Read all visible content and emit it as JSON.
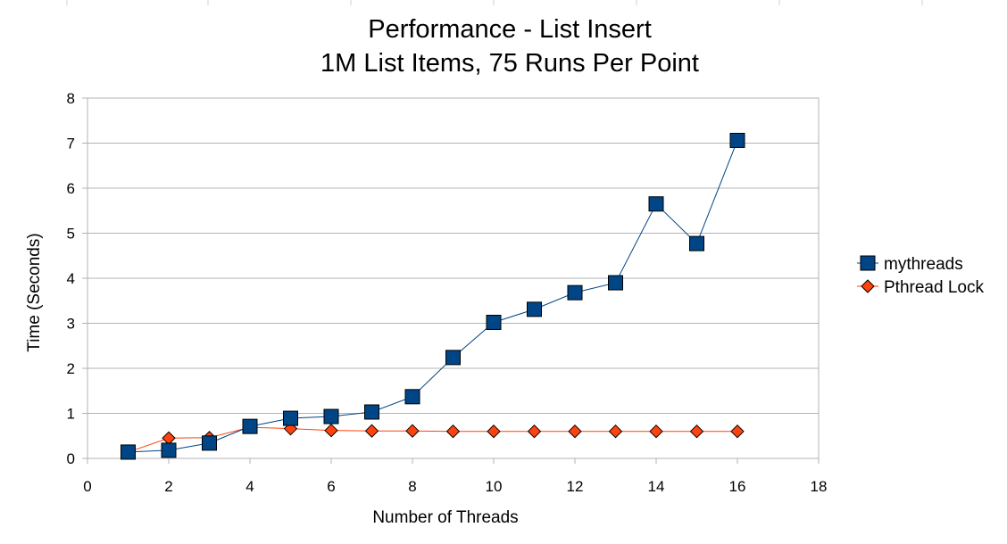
{
  "chart_data": {
    "type": "line",
    "title": "Performance - List Insert",
    "subtitle": "1M List Items, 75 Runs Per Point",
    "xlabel": "Number of Threads",
    "ylabel": "Time (Seconds)",
    "xlim": [
      0,
      18
    ],
    "ylim": [
      0,
      8
    ],
    "xticks": [
      0,
      2,
      4,
      6,
      8,
      10,
      12,
      14,
      16,
      18
    ],
    "yticks": [
      0,
      1,
      2,
      3,
      4,
      5,
      6,
      7,
      8
    ],
    "grid": "horizontal",
    "legend_position": "right",
    "series": [
      {
        "name": "mythreads",
        "color": "#004586",
        "marker": "square",
        "x": [
          1,
          2,
          3,
          4,
          5,
          6,
          7,
          8,
          9,
          10,
          11,
          12,
          13,
          14,
          15,
          16
        ],
        "y": [
          0.14,
          0.18,
          0.34,
          0.71,
          0.89,
          0.93,
          1.03,
          1.37,
          2.24,
          3.02,
          3.31,
          3.68,
          3.9,
          5.65,
          4.77,
          7.06
        ]
      },
      {
        "name": "Pthread Lock",
        "color": "#ff420e",
        "marker": "diamond",
        "x": [
          1,
          2,
          3,
          4,
          5,
          6,
          7,
          8,
          9,
          10,
          11,
          12,
          13,
          14,
          15,
          16
        ],
        "y": [
          0.14,
          0.45,
          0.46,
          0.69,
          0.66,
          0.62,
          0.61,
          0.61,
          0.6,
          0.6,
          0.6,
          0.6,
          0.6,
          0.6,
          0.6,
          0.6
        ]
      }
    ]
  }
}
